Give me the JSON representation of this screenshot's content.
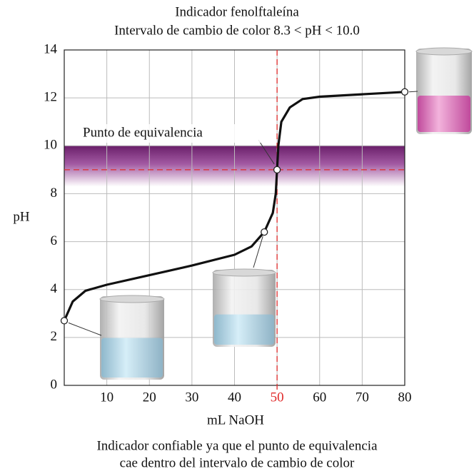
{
  "chart_data": {
    "type": "line",
    "title": "Indicador fenolftaleína",
    "subtitle": "Intervalo de cambio de color 8.3 < pH < 10.0",
    "x_label": "mL NaOH",
    "y_label": "pH",
    "annotation": "Punto de equivalencia",
    "caption": [
      "Indicador confiable ya que el punto de equivalencia",
      "cae dentro del intervalo de cambio de color"
    ],
    "x": [
      0,
      2,
      5,
      10,
      20,
      30,
      40,
      44,
      47,
      49,
      49.7,
      50,
      50.3,
      51,
      53,
      56,
      60,
      70,
      80
    ],
    "values": [
      2.7,
      3.5,
      3.95,
      4.2,
      4.6,
      5.0,
      5.45,
      5.8,
      6.4,
      7.2,
      8.0,
      9.0,
      10.0,
      11.0,
      11.6,
      11.95,
      12.05,
      12.15,
      12.25
    ],
    "color": "#111111",
    "points": {
      "x": [
        0,
        47,
        50,
        80
      ],
      "y": [
        2.7,
        6.4,
        9.0,
        12.25
      ]
    },
    "indicator_range": [
      8.3,
      10.0
    ],
    "band_color": "#7a2a7a",
    "equivalence": {
      "x": 50,
      "y": 9.0
    },
    "equivalence_color": "#e02a2a",
    "xlim": [
      0,
      80
    ],
    "ylim": [
      0,
      14
    ],
    "xticks": [
      10,
      20,
      30,
      40,
      50,
      60,
      70,
      80
    ],
    "yticks": [
      0,
      2,
      4,
      6,
      8,
      10,
      12,
      14
    ],
    "grid": true
  }
}
